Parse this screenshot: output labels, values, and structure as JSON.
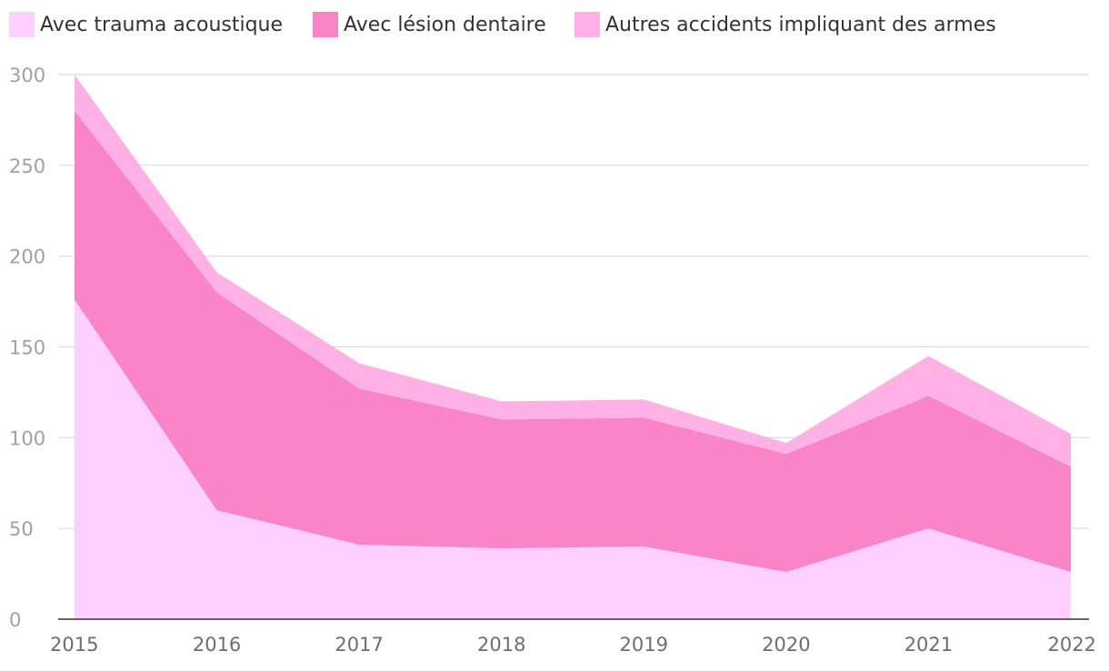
{
  "chart_data": {
    "type": "area",
    "stacked": true,
    "title": "",
    "xlabel": "",
    "ylabel": "",
    "x": [
      "2015",
      "2016",
      "2017",
      "2018",
      "2019",
      "2020",
      "2021",
      "2022"
    ],
    "ylim": [
      0,
      300
    ],
    "yticks": [
      "0",
      "50",
      "100",
      "150",
      "200",
      "250",
      "300"
    ],
    "grid": true,
    "legend_position": "top",
    "series": [
      {
        "name": "Avec trauma acoustique",
        "color": "#ffd0ff",
        "values": [
          176,
          60,
          41,
          39,
          40,
          26,
          50,
          26
        ]
      },
      {
        "name": "Avec lésion dentaire",
        "color": "#f984c6",
        "values": [
          104,
          120,
          86,
          71,
          71,
          65,
          73,
          58
        ]
      },
      {
        "name": "Autres accidents impliquant des armes",
        "color": "#ffb0e4",
        "values": [
          20,
          11,
          14,
          10,
          10,
          6,
          22,
          18
        ]
      }
    ]
  }
}
